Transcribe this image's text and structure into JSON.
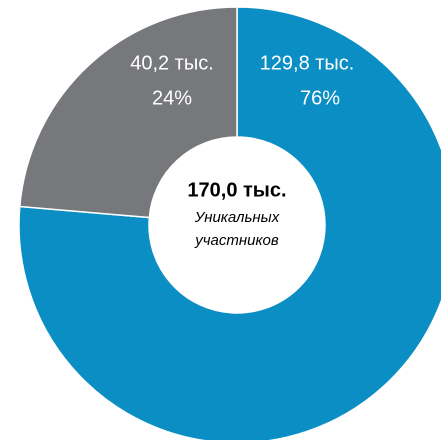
{
  "chart_data": {
    "type": "donut",
    "categories": [
      "129,8 тыс.",
      "40,2 тыс."
    ],
    "values": [
      129.8,
      40.2
    ],
    "value_labels": [
      "129,8 тыс.",
      "40,2 тыс."
    ],
    "percent_labels": [
      "76%",
      "24%"
    ],
    "colors": [
      "#0b8ec3",
      "#76787b"
    ],
    "center_label": "170,0 тыс.",
    "center_sublabel": [
      "Уникальных",
      "участников"
    ]
  }
}
